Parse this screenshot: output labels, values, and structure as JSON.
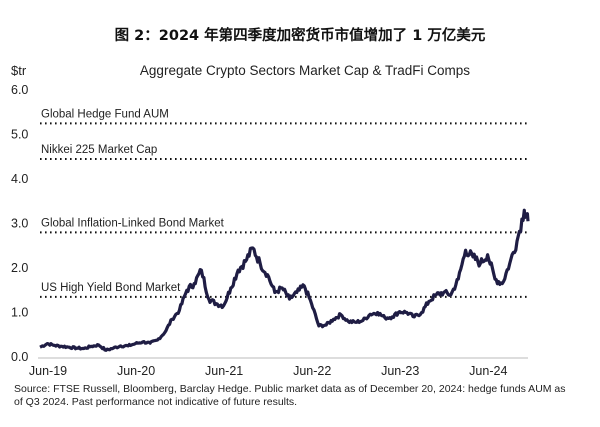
{
  "figure_title": "图 2：2024 年第四季度加密货币市值增加了 1 万亿美元",
  "source_note": "Source: FTSE Russell, Bloomberg, Barclay Hedge. Public market data as of December 20, 2024: hedge funds AUM as of Q3 2024. Past performance not indicative of future results.",
  "colors": {
    "line": "#1f1d44",
    "reference": "#111111",
    "axis": "#bbbbbb",
    "text": "#222222"
  },
  "chart_data": {
    "type": "line",
    "title": "Aggregate Crypto Sectors Market Cap & TradFi Comps",
    "ylabel": "$tr",
    "xlabel": "",
    "ylim": [
      0,
      6
    ],
    "yticks": [
      "0.0",
      "1.0",
      "2.0",
      "3.0",
      "4.0",
      "5.0",
      "6.0"
    ],
    "ytick_values": [
      0,
      1,
      2,
      3,
      4,
      5,
      6
    ],
    "xticks": [
      "Jun-19",
      "Jun-20",
      "Jun-21",
      "Jun-22",
      "Jun-23",
      "Jun-24"
    ],
    "xtick_months": [
      0,
      12,
      24,
      36,
      48,
      60
    ],
    "xlim_months": [
      0,
      66.5
    ],
    "grid": false,
    "legend": "none",
    "reference_lines": [
      {
        "label": "Global Hedge Fund AUM",
        "value": 5.25
      },
      {
        "label": "Nikkei 225 Market Cap",
        "value": 4.45
      },
      {
        "label": "Global Inflation-Linked Bond Market",
        "value": 2.8
      },
      {
        "label": "US High Yield Bond Market",
        "value": 1.35
      }
    ],
    "series": [
      {
        "name": "Aggregate Crypto Sectors Market Cap",
        "x_months": [
          0,
          1,
          2,
          3,
          4,
          5,
          6,
          7,
          8,
          9,
          10,
          11,
          12,
          13,
          14,
          15,
          16,
          17,
          18,
          19,
          20,
          21,
          22,
          23,
          24,
          25,
          26,
          27,
          28,
          29,
          30,
          31,
          32,
          33,
          34,
          35,
          36,
          37,
          38,
          39,
          40,
          41,
          42,
          43,
          44,
          45,
          46,
          47,
          48,
          49,
          50,
          51,
          52,
          53,
          54,
          55,
          56,
          57,
          58,
          59,
          60,
          61,
          62,
          63,
          64,
          65,
          66,
          66.5
        ],
        "values": [
          0.22,
          0.3,
          0.26,
          0.24,
          0.22,
          0.2,
          0.19,
          0.24,
          0.27,
          0.15,
          0.2,
          0.25,
          0.25,
          0.3,
          0.34,
          0.31,
          0.38,
          0.55,
          0.85,
          1.05,
          1.5,
          1.65,
          1.95,
          1.3,
          1.2,
          1.15,
          1.55,
          1.95,
          2.15,
          2.45,
          2.1,
          1.85,
          1.45,
          1.55,
          1.3,
          1.45,
          1.6,
          1.2,
          0.7,
          0.72,
          0.85,
          0.95,
          0.8,
          0.78,
          0.82,
          0.96,
          1.0,
          0.88,
          0.9,
          1.02,
          1.0,
          0.9,
          1.0,
          1.25,
          1.4,
          1.45,
          1.4,
          1.75,
          2.4,
          2.25,
          2.1,
          2.3,
          1.75,
          1.65,
          2.1,
          2.6,
          3.3,
          3.05
        ]
      }
    ]
  }
}
